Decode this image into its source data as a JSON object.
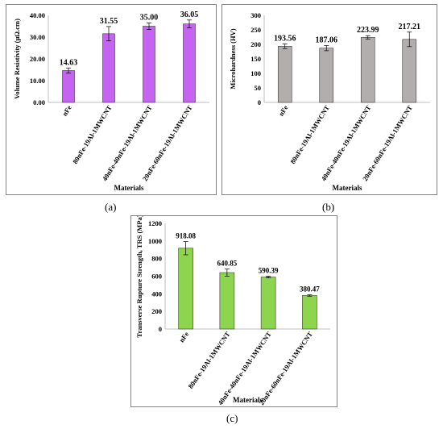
{
  "chart_data": [
    {
      "type": "bar",
      "categories": [
        "nFe",
        "80nFe-19Al-1MWCNT",
        "40nFe-40nFe-19Al-1MWCNT",
        "20nFe-60nFe-19Al-1MWCNT"
      ],
      "values": [
        14.63,
        31.55,
        35.0,
        36.05
      ],
      "value_labels": [
        "14.63",
        "31.55",
        "35.00",
        "36.05"
      ],
      "errors": [
        1.2,
        3.3,
        1.5,
        1.8
      ],
      "ylabel": "Volume Resistivity (μΩ.cm)",
      "xlabel": "Materials",
      "ylim": [
        0,
        40
      ],
      "yticks": [
        "0.00",
        "10.00",
        "20.00",
        "30.00",
        "40.00"
      ],
      "ytick_values": [
        0,
        10,
        20,
        30,
        40
      ],
      "grid": false,
      "bar_color": "#c564f0",
      "caption": "(a)"
    },
    {
      "type": "bar",
      "categories": [
        "nFe",
        "80nFe-19Al-1MWCNT",
        "40nFe-40nFe-19Al-1MWCNT",
        "20nFe-60nFe-19Al-1MWCNT"
      ],
      "values": [
        193.56,
        187.06,
        223.99,
        217.21
      ],
      "value_labels": [
        "193.56",
        "187.06",
        "223.99",
        "217.21"
      ],
      "errors": [
        8,
        9,
        6,
        25
      ],
      "ylabel": "Microhardness  (HV)",
      "xlabel": "Materials",
      "ylim": [
        0,
        300
      ],
      "yticks": [
        "0",
        "50",
        "100",
        "150",
        "200",
        "250",
        "300"
      ],
      "ytick_values": [
        0,
        50,
        100,
        150,
        200,
        250,
        300
      ],
      "grid": false,
      "bar_color": "#b3aeae",
      "caption": "(b)"
    },
    {
      "type": "bar",
      "categories": [
        "nFe",
        "80nFe-19Al-1MWCNT",
        "40nFe-40nFe-19Al-1MWCNT",
        "20nFe-60nFe-19Al-1MWCNT"
      ],
      "values": [
        918.08,
        640.85,
        590.39,
        380.47
      ],
      "value_labels": [
        "918.08",
        "640.85",
        "590.39",
        "380.47"
      ],
      "errors": [
        75,
        40,
        10,
        8
      ],
      "ylabel": "Transverse Rupture Strength, TRS (MPa)",
      "xlabel": "Materials",
      "ylim": [
        0,
        1200
      ],
      "yticks": [
        "0",
        "200",
        "400",
        "600",
        "800",
        "1000",
        "1200"
      ],
      "ytick_values": [
        0,
        200,
        400,
        600,
        800,
        1000,
        1200
      ],
      "grid": false,
      "bar_color": "#8dd44f",
      "caption": "(c)"
    }
  ]
}
